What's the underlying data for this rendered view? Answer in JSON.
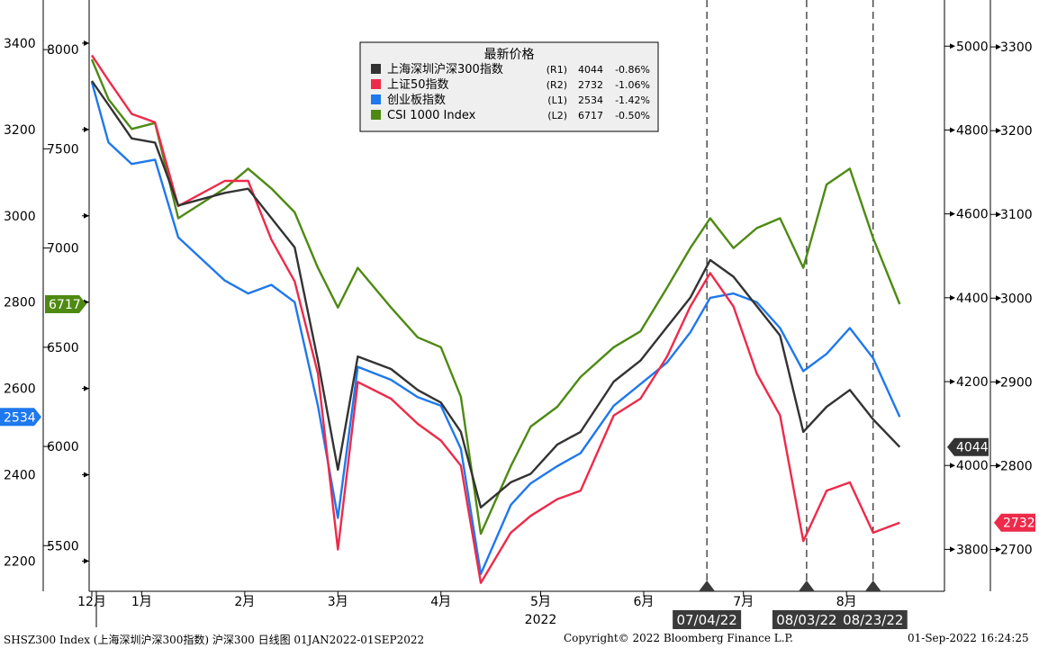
{
  "chart_data": {
    "type": "line",
    "title": "",
    "x_labels": [
      {
        "label": "12月",
        "date": "2021-12-31"
      },
      {
        "label": "1月",
        "date": "2022-01-15"
      },
      {
        "label": "2月",
        "date": "2022-02-15"
      },
      {
        "label": "3月",
        "date": "2022-03-15"
      },
      {
        "label": "4月",
        "date": "2022-04-15"
      },
      {
        "label": "5月",
        "date": "2022-05-15"
      },
      {
        "label": "6月",
        "date": "2022-06-15"
      },
      {
        "label": "7月",
        "date": "2022-07-15"
      },
      {
        "label": "8月",
        "date": "2022-08-15"
      }
    ],
    "year_label": "2022",
    "xlim": [
      "2021-12-31",
      "2022-09-01"
    ],
    "axes": {
      "left_outer": {
        "ticks": [
          2200,
          2400,
          2600,
          2800,
          3000,
          3200,
          3400
        ],
        "range": [
          2130,
          3500
        ]
      },
      "left_inner": {
        "ticks": [
          5500,
          6000,
          6500,
          7000,
          7500,
          8000
        ],
        "range": [
          5270,
          8250
        ]
      },
      "right_inner": {
        "ticks": [
          3800,
          4000,
          4200,
          4400,
          4600,
          4800,
          5000
        ],
        "range": [
          3700,
          5110
        ]
      },
      "right_outer": {
        "ticks": [
          2700,
          2800,
          2900,
          3000,
          3100,
          3200,
          3300
        ],
        "range": [
          2650,
          3356
        ]
      }
    },
    "grid": false,
    "legend": {
      "title": "最新价格",
      "position": "top-center",
      "entries": [
        {
          "name": "上海深圳沪深300指数",
          "axis": "(R1)",
          "last": "4044",
          "change": "-0.86%",
          "color": "#333333"
        },
        {
          "name": "上证50指数",
          "axis": "(R2)",
          "last": "2732",
          "change": "-1.06%",
          "color": "#ee2a4a"
        },
        {
          "name": "创业板指数",
          "axis": "(L1)",
          "last": "2534",
          "change": "-1.42%",
          "color": "#1e78ee"
        },
        {
          "name": "CSI 1000 Index",
          "axis": "(L2)",
          "last": "6717",
          "change": "-0.50%",
          "color": "#4e8a12"
        }
      ]
    },
    "series": [
      {
        "name": "上海深圳沪深300指数",
        "axis": "right_inner",
        "color": "#333333",
        "last_label": "4044",
        "points": [
          [
            "2021-12-31",
            4917
          ],
          [
            "2022-01-05",
            4860
          ],
          [
            "2022-01-12",
            4780
          ],
          [
            "2022-01-19",
            4770
          ],
          [
            "2022-01-26",
            4620
          ],
          [
            "2022-02-09",
            4650
          ],
          [
            "2022-02-16",
            4660
          ],
          [
            "2022-02-23",
            4590
          ],
          [
            "2022-03-02",
            4520
          ],
          [
            "2022-03-09",
            4250
          ],
          [
            "2022-03-15",
            3990
          ],
          [
            "2022-03-21",
            4260
          ],
          [
            "2022-03-31",
            4230
          ],
          [
            "2022-04-08",
            4180
          ],
          [
            "2022-04-15",
            4150
          ],
          [
            "2022-04-21",
            4080
          ],
          [
            "2022-04-27",
            3900
          ],
          [
            "2022-05-06",
            3960
          ],
          [
            "2022-05-12",
            3980
          ],
          [
            "2022-05-20",
            4050
          ],
          [
            "2022-05-27",
            4080
          ],
          [
            "2022-06-06",
            4200
          ],
          [
            "2022-06-14",
            4250
          ],
          [
            "2022-06-22",
            4330
          ],
          [
            "2022-06-29",
            4400
          ],
          [
            "2022-07-05",
            4490
          ],
          [
            "2022-07-12",
            4450
          ],
          [
            "2022-07-19",
            4380
          ],
          [
            "2022-07-26",
            4310
          ],
          [
            "2022-08-02",
            4080
          ],
          [
            "2022-08-09",
            4140
          ],
          [
            "2022-08-16",
            4180
          ],
          [
            "2022-08-23",
            4110
          ],
          [
            "2022-08-31",
            4044
          ]
        ]
      },
      {
        "name": "上证50指数",
        "axis": "right_outer",
        "color": "#ee2a4a",
        "last_label": "2732",
        "points": [
          [
            "2021-12-31",
            3290
          ],
          [
            "2022-01-05",
            3260
          ],
          [
            "2022-01-12",
            3220
          ],
          [
            "2022-01-19",
            3210
          ],
          [
            "2022-01-26",
            3110
          ],
          [
            "2022-02-09",
            3140
          ],
          [
            "2022-02-16",
            3140
          ],
          [
            "2022-02-23",
            3070
          ],
          [
            "2022-03-02",
            3020
          ],
          [
            "2022-03-09",
            2910
          ],
          [
            "2022-03-15",
            2700
          ],
          [
            "2022-03-21",
            2900
          ],
          [
            "2022-03-31",
            2880
          ],
          [
            "2022-04-08",
            2850
          ],
          [
            "2022-04-15",
            2830
          ],
          [
            "2022-04-21",
            2800
          ],
          [
            "2022-04-27",
            2660
          ],
          [
            "2022-05-06",
            2720
          ],
          [
            "2022-05-12",
            2740
          ],
          [
            "2022-05-20",
            2760
          ],
          [
            "2022-05-27",
            2770
          ],
          [
            "2022-06-06",
            2860
          ],
          [
            "2022-06-14",
            2880
          ],
          [
            "2022-06-22",
            2930
          ],
          [
            "2022-06-29",
            2990
          ],
          [
            "2022-07-05",
            3030
          ],
          [
            "2022-07-12",
            2990
          ],
          [
            "2022-07-19",
            2910
          ],
          [
            "2022-07-26",
            2860
          ],
          [
            "2022-08-02",
            2710
          ],
          [
            "2022-08-09",
            2770
          ],
          [
            "2022-08-16",
            2780
          ],
          [
            "2022-08-23",
            2720
          ],
          [
            "2022-08-31",
            2732
          ]
        ]
      },
      {
        "name": "创业板指数",
        "axis": "left_outer",
        "color": "#1e78ee",
        "last_label": "2534",
        "points": [
          [
            "2021-12-31",
            3310
          ],
          [
            "2022-01-05",
            3170
          ],
          [
            "2022-01-12",
            3120
          ],
          [
            "2022-01-19",
            3130
          ],
          [
            "2022-01-26",
            2950
          ],
          [
            "2022-02-09",
            2850
          ],
          [
            "2022-02-16",
            2820
          ],
          [
            "2022-02-23",
            2840
          ],
          [
            "2022-03-02",
            2800
          ],
          [
            "2022-03-09",
            2560
          ],
          [
            "2022-03-15",
            2300
          ],
          [
            "2022-03-21",
            2650
          ],
          [
            "2022-03-31",
            2620
          ],
          [
            "2022-04-08",
            2580
          ],
          [
            "2022-04-15",
            2560
          ],
          [
            "2022-04-21",
            2460
          ],
          [
            "2022-04-27",
            2170
          ],
          [
            "2022-05-06",
            2330
          ],
          [
            "2022-05-12",
            2380
          ],
          [
            "2022-05-20",
            2420
          ],
          [
            "2022-05-27",
            2450
          ],
          [
            "2022-06-06",
            2560
          ],
          [
            "2022-06-14",
            2610
          ],
          [
            "2022-06-22",
            2660
          ],
          [
            "2022-06-29",
            2730
          ],
          [
            "2022-07-05",
            2810
          ],
          [
            "2022-07-12",
            2820
          ],
          [
            "2022-07-19",
            2800
          ],
          [
            "2022-07-26",
            2740
          ],
          [
            "2022-08-02",
            2640
          ],
          [
            "2022-08-09",
            2680
          ],
          [
            "2022-08-16",
            2740
          ],
          [
            "2022-08-23",
            2670
          ],
          [
            "2022-08-31",
            2534
          ]
        ]
      },
      {
        "name": "CSI 1000 Index",
        "axis": "left_inner",
        "color": "#4e8a12",
        "last_label": "6717",
        "points": [
          [
            "2021-12-31",
            7950
          ],
          [
            "2022-01-05",
            7750
          ],
          [
            "2022-01-12",
            7600
          ],
          [
            "2022-01-19",
            7630
          ],
          [
            "2022-01-26",
            7150
          ],
          [
            "2022-02-09",
            7300
          ],
          [
            "2022-02-16",
            7400
          ],
          [
            "2022-02-23",
            7300
          ],
          [
            "2022-03-02",
            7180
          ],
          [
            "2022-03-09",
            6900
          ],
          [
            "2022-03-15",
            6700
          ],
          [
            "2022-03-21",
            6900
          ],
          [
            "2022-03-31",
            6700
          ],
          [
            "2022-04-08",
            6550
          ],
          [
            "2022-04-15",
            6500
          ],
          [
            "2022-04-21",
            6250
          ],
          [
            "2022-04-27",
            5560
          ],
          [
            "2022-05-06",
            5900
          ],
          [
            "2022-05-12",
            6100
          ],
          [
            "2022-05-20",
            6200
          ],
          [
            "2022-05-27",
            6350
          ],
          [
            "2022-06-06",
            6500
          ],
          [
            "2022-06-14",
            6580
          ],
          [
            "2022-06-22",
            6800
          ],
          [
            "2022-06-29",
            7000
          ],
          [
            "2022-07-05",
            7150
          ],
          [
            "2022-07-12",
            7000
          ],
          [
            "2022-07-19",
            7100
          ],
          [
            "2022-07-26",
            7150
          ],
          [
            "2022-08-02",
            6900
          ],
          [
            "2022-08-09",
            7320
          ],
          [
            "2022-08-16",
            7400
          ],
          [
            "2022-08-23",
            7050
          ],
          [
            "2022-08-31",
            6717
          ]
        ]
      }
    ],
    "events": [
      {
        "label": "07/04/22",
        "date": "2022-07-04"
      },
      {
        "label": "08/03/22",
        "date": "2022-08-03"
      },
      {
        "label": "08/23/22",
        "date": "2022-08-23"
      }
    ]
  },
  "footer": {
    "left": "SHSZ300 Index (上海深圳沪深300指数) 沪深300  日线图 01JAN2022-01SEP2022",
    "middle": "Copyright© 2022 Bloomberg Finance L.P.",
    "right": "01-Sep-2022 16:24:25"
  }
}
